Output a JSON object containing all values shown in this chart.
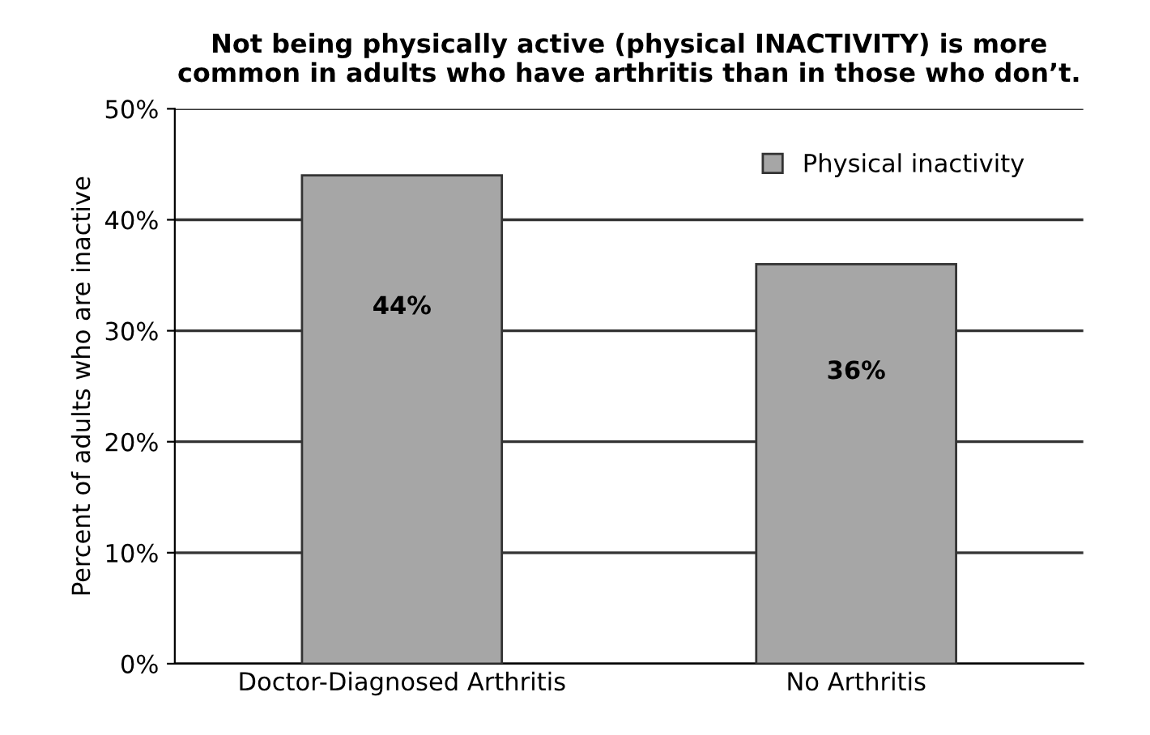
{
  "chart_data": {
    "type": "bar",
    "title": "Not being physically active (physical INACTIVITY) is more\ncommon in adults who have arthritis than in those who don’t.",
    "ylabel": "Percent of adults who are inactive",
    "categories": [
      "Doctor-Diagnosed Arthritis",
      "No Arthritis"
    ],
    "series": [
      {
        "name": "Physical inactivity",
        "color": "#a6a6a6",
        "values": [
          44,
          36
        ],
        "value_labels": [
          "44%",
          "36%"
        ]
      }
    ],
    "ylim": [
      0,
      50
    ],
    "yticks": [
      {
        "value": 0,
        "label": "0%"
      },
      {
        "value": 10,
        "label": "10%"
      },
      {
        "value": 20,
        "label": "20%"
      },
      {
        "value": 30,
        "label": "30%"
      },
      {
        "value": 40,
        "label": "40%"
      },
      {
        "value": 50,
        "label": "50%"
      }
    ],
    "grid": "y",
    "legend": "top right"
  }
}
